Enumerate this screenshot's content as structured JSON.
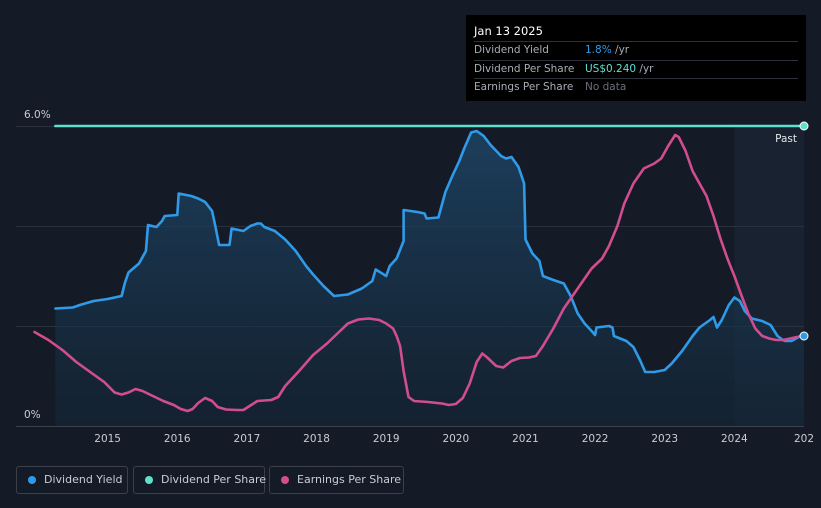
{
  "chart_data": {
    "type": "area",
    "y_axis": {
      "min": 0,
      "max": 6.0,
      "top_label": "6.0%",
      "bottom_label": "0%",
      "unit": "%"
    },
    "x_axis": {
      "min": 2014.0,
      "max": 2025.0,
      "ticks": [
        "2015",
        "2016",
        "2017",
        "2018",
        "2019",
        "2020",
        "2021",
        "2022",
        "2023",
        "2024",
        "202"
      ]
    },
    "past_label": "Past",
    "past_region_start": 2024.0,
    "series": [
      {
        "name": "Dividend Yield",
        "color": "#2f9be8",
        "area": true,
        "end_marker": true,
        "points": [
          [
            2014.25,
            2.35
          ],
          [
            2014.5,
            2.37
          ],
          [
            2014.6,
            2.42
          ],
          [
            2014.8,
            2.5
          ],
          [
            2015.0,
            2.54
          ],
          [
            2015.2,
            2.6
          ],
          [
            2015.25,
            2.87
          ],
          [
            2015.3,
            3.07
          ],
          [
            2015.45,
            3.25
          ],
          [
            2015.55,
            3.5
          ],
          [
            2015.58,
            4.02
          ],
          [
            2015.7,
            3.98
          ],
          [
            2015.78,
            4.1
          ],
          [
            2015.82,
            4.2
          ],
          [
            2016.0,
            4.22
          ],
          [
            2016.02,
            4.65
          ],
          [
            2016.2,
            4.6
          ],
          [
            2016.3,
            4.55
          ],
          [
            2016.4,
            4.48
          ],
          [
            2016.5,
            4.3
          ],
          [
            2016.55,
            3.97
          ],
          [
            2016.6,
            3.62
          ],
          [
            2016.75,
            3.62
          ],
          [
            2016.78,
            3.95
          ],
          [
            2016.95,
            3.9
          ],
          [
            2017.05,
            4.0
          ],
          [
            2017.15,
            4.05
          ],
          [
            2017.2,
            4.05
          ],
          [
            2017.25,
            3.98
          ],
          [
            2017.4,
            3.9
          ],
          [
            2017.55,
            3.73
          ],
          [
            2017.7,
            3.5
          ],
          [
            2017.85,
            3.2
          ],
          [
            2017.95,
            3.03
          ],
          [
            2018.1,
            2.8
          ],
          [
            2018.25,
            2.6
          ],
          [
            2018.45,
            2.63
          ],
          [
            2018.65,
            2.75
          ],
          [
            2018.8,
            2.9
          ],
          [
            2018.85,
            3.13
          ],
          [
            2019.0,
            3.0
          ],
          [
            2019.05,
            3.2
          ],
          [
            2019.15,
            3.35
          ],
          [
            2019.25,
            3.7
          ],
          [
            2019.25,
            4.32
          ],
          [
            2019.45,
            4.28
          ],
          [
            2019.55,
            4.25
          ],
          [
            2019.58,
            4.15
          ],
          [
            2019.75,
            4.17
          ],
          [
            2019.85,
            4.68
          ],
          [
            2019.95,
            5.0
          ],
          [
            2020.05,
            5.3
          ],
          [
            2020.12,
            5.55
          ],
          [
            2020.22,
            5.87
          ],
          [
            2020.3,
            5.9
          ],
          [
            2020.4,
            5.8
          ],
          [
            2020.5,
            5.62
          ],
          [
            2020.65,
            5.4
          ],
          [
            2020.72,
            5.35
          ],
          [
            2020.8,
            5.38
          ],
          [
            2020.9,
            5.18
          ],
          [
            2020.98,
            4.85
          ],
          [
            2021.0,
            3.73
          ],
          [
            2021.1,
            3.45
          ],
          [
            2021.2,
            3.3
          ],
          [
            2021.25,
            3.0
          ],
          [
            2021.4,
            2.92
          ],
          [
            2021.55,
            2.85
          ],
          [
            2021.65,
            2.6
          ],
          [
            2021.75,
            2.25
          ],
          [
            2021.85,
            2.05
          ],
          [
            2021.95,
            1.9
          ],
          [
            2022.0,
            1.82
          ],
          [
            2022.02,
            1.97
          ],
          [
            2022.2,
            2.0
          ],
          [
            2022.25,
            1.97
          ],
          [
            2022.27,
            1.8
          ],
          [
            2022.45,
            1.7
          ],
          [
            2022.55,
            1.58
          ],
          [
            2022.65,
            1.3
          ],
          [
            2022.72,
            1.08
          ],
          [
            2022.85,
            1.08
          ],
          [
            2023.0,
            1.12
          ],
          [
            2023.1,
            1.25
          ],
          [
            2023.25,
            1.5
          ],
          [
            2023.4,
            1.8
          ],
          [
            2023.5,
            1.97
          ],
          [
            2023.65,
            2.12
          ],
          [
            2023.7,
            2.18
          ],
          [
            2023.75,
            1.97
          ],
          [
            2023.82,
            2.12
          ],
          [
            2023.92,
            2.42
          ],
          [
            2024.0,
            2.57
          ],
          [
            2024.08,
            2.5
          ],
          [
            2024.15,
            2.3
          ],
          [
            2024.25,
            2.15
          ],
          [
            2024.4,
            2.1
          ],
          [
            2024.52,
            2.02
          ],
          [
            2024.62,
            1.8
          ],
          [
            2024.72,
            1.7
          ],
          [
            2024.82,
            1.7
          ],
          [
            2024.95,
            1.8
          ],
          [
            2025.0,
            1.8
          ]
        ]
      },
      {
        "name": "Dividend Per Share",
        "color": "#5ee0cf",
        "area": false,
        "end_marker": true,
        "points": [
          [
            2014.25,
            6.0
          ],
          [
            2025.0,
            6.0
          ]
        ]
      },
      {
        "name": "Earnings Per Share",
        "color": "#d24d8f",
        "area": false,
        "end_marker": false,
        "points": [
          [
            2013.95,
            1.88
          ],
          [
            2014.15,
            1.72
          ],
          [
            2014.35,
            1.52
          ],
          [
            2014.55,
            1.28
          ],
          [
            2014.75,
            1.08
          ],
          [
            2014.95,
            0.88
          ],
          [
            2015.1,
            0.67
          ],
          [
            2015.2,
            0.63
          ],
          [
            2015.3,
            0.67
          ],
          [
            2015.4,
            0.74
          ],
          [
            2015.5,
            0.7
          ],
          [
            2015.65,
            0.6
          ],
          [
            2015.8,
            0.5
          ],
          [
            2015.95,
            0.42
          ],
          [
            2016.05,
            0.34
          ],
          [
            2016.15,
            0.3
          ],
          [
            2016.22,
            0.34
          ],
          [
            2016.3,
            0.46
          ],
          [
            2016.4,
            0.56
          ],
          [
            2016.5,
            0.5
          ],
          [
            2016.58,
            0.38
          ],
          [
            2016.7,
            0.33
          ],
          [
            2016.85,
            0.32
          ],
          [
            2016.95,
            0.32
          ],
          [
            2017.05,
            0.41
          ],
          [
            2017.15,
            0.5
          ],
          [
            2017.35,
            0.52
          ],
          [
            2017.45,
            0.58
          ],
          [
            2017.55,
            0.8
          ],
          [
            2017.75,
            1.1
          ],
          [
            2017.95,
            1.42
          ],
          [
            2018.15,
            1.65
          ],
          [
            2018.3,
            1.85
          ],
          [
            2018.45,
            2.05
          ],
          [
            2018.6,
            2.13
          ],
          [
            2018.75,
            2.15
          ],
          [
            2018.9,
            2.12
          ],
          [
            2019.0,
            2.05
          ],
          [
            2019.1,
            1.95
          ],
          [
            2019.15,
            1.8
          ],
          [
            2019.2,
            1.6
          ],
          [
            2019.25,
            1.1
          ],
          [
            2019.32,
            0.58
          ],
          [
            2019.4,
            0.5
          ],
          [
            2019.6,
            0.48
          ],
          [
            2019.8,
            0.45
          ],
          [
            2019.9,
            0.42
          ],
          [
            2020.0,
            0.44
          ],
          [
            2020.1,
            0.56
          ],
          [
            2020.2,
            0.85
          ],
          [
            2020.3,
            1.28
          ],
          [
            2020.38,
            1.45
          ],
          [
            2020.45,
            1.37
          ],
          [
            2020.58,
            1.2
          ],
          [
            2020.68,
            1.17
          ],
          [
            2020.8,
            1.3
          ],
          [
            2020.92,
            1.36
          ],
          [
            2021.05,
            1.37
          ],
          [
            2021.15,
            1.4
          ],
          [
            2021.25,
            1.6
          ],
          [
            2021.4,
            1.95
          ],
          [
            2021.55,
            2.35
          ],
          [
            2021.75,
            2.75
          ],
          [
            2021.95,
            3.15
          ],
          [
            2022.1,
            3.35
          ],
          [
            2022.2,
            3.6
          ],
          [
            2022.32,
            4.0
          ],
          [
            2022.42,
            4.45
          ],
          [
            2022.55,
            4.85
          ],
          [
            2022.7,
            5.15
          ],
          [
            2022.85,
            5.25
          ],
          [
            2022.95,
            5.35
          ],
          [
            2023.05,
            5.6
          ],
          [
            2023.15,
            5.82
          ],
          [
            2023.2,
            5.78
          ],
          [
            2023.3,
            5.5
          ],
          [
            2023.4,
            5.1
          ],
          [
            2023.5,
            4.85
          ],
          [
            2023.6,
            4.6
          ],
          [
            2023.7,
            4.2
          ],
          [
            2023.8,
            3.75
          ],
          [
            2023.9,
            3.35
          ],
          [
            2024.0,
            3.0
          ],
          [
            2024.1,
            2.62
          ],
          [
            2024.2,
            2.25
          ],
          [
            2024.3,
            1.95
          ],
          [
            2024.4,
            1.8
          ],
          [
            2024.5,
            1.75
          ],
          [
            2024.6,
            1.72
          ],
          [
            2024.7,
            1.72
          ],
          [
            2024.8,
            1.75
          ],
          [
            2024.9,
            1.78
          ],
          [
            2025.0,
            1.8
          ]
        ]
      }
    ],
    "tooltip": {
      "date": "Jan 13 2025",
      "rows": [
        {
          "label": "Dividend Yield",
          "value": "1.8%",
          "unit": " /yr"
        },
        {
          "label": "Dividend Per Share",
          "value": "US$0.240",
          "unit": " /yr"
        },
        {
          "label": "Earnings Per Share",
          "value": "No data",
          "unit": ""
        }
      ]
    },
    "legend": [
      {
        "label": "Dividend Yield",
        "color": "#2f9be8"
      },
      {
        "label": "Dividend Per Share",
        "color": "#5ee0cf"
      },
      {
        "label": "Earnings Per Share",
        "color": "#d24d8f"
      }
    ]
  }
}
